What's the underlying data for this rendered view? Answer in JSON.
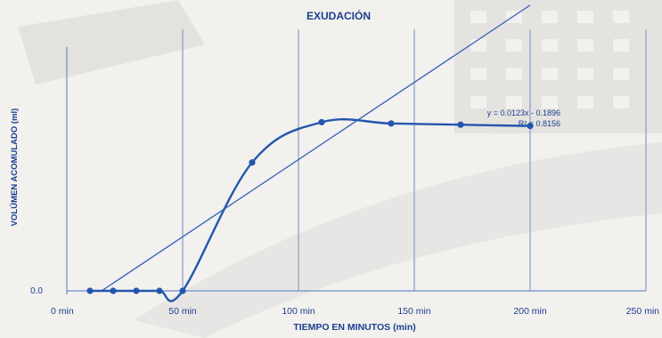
{
  "chart_data": {
    "type": "line",
    "title": "EXUDACIÓN",
    "xlabel": "TIEMPO EN MINUTOS (min)",
    "ylabel": "VOLÚMEN ACOMULADO (ml)",
    "x_ticks": [
      {
        "value": 0,
        "label": "0 min"
      },
      {
        "value": 50,
        "label": "50 min"
      },
      {
        "value": 100,
        "label": "100 min"
      },
      {
        "value": 150,
        "label": "150 min"
      },
      {
        "value": 200,
        "label": "200 min"
      },
      {
        "value": 250,
        "label": "250 min"
      }
    ],
    "y_tick_label": "0.0",
    "xlim": [
      0,
      250
    ],
    "ylim": [
      0,
      2.0
    ],
    "grid": "vertical",
    "series": [
      {
        "name": "",
        "x": [
          10,
          20,
          30,
          40,
          50,
          80,
          110,
          140,
          170,
          200
        ],
        "y": [
          0,
          0,
          0,
          0,
          0,
          1.02,
          1.34,
          1.33,
          1.32,
          1.31
        ]
      }
    ],
    "trendline": {
      "slope": 0.0123,
      "intercept": -0.1896,
      "equation": "y = 0.0123x - 0.1896",
      "r2": "R² = 0.8156",
      "x_range": [
        15,
        200
      ]
    },
    "colors": {
      "series": "#2456ad",
      "trend": "#2f5fb5",
      "grid": "#6f8cc7",
      "text": "#1b3e8f"
    }
  }
}
